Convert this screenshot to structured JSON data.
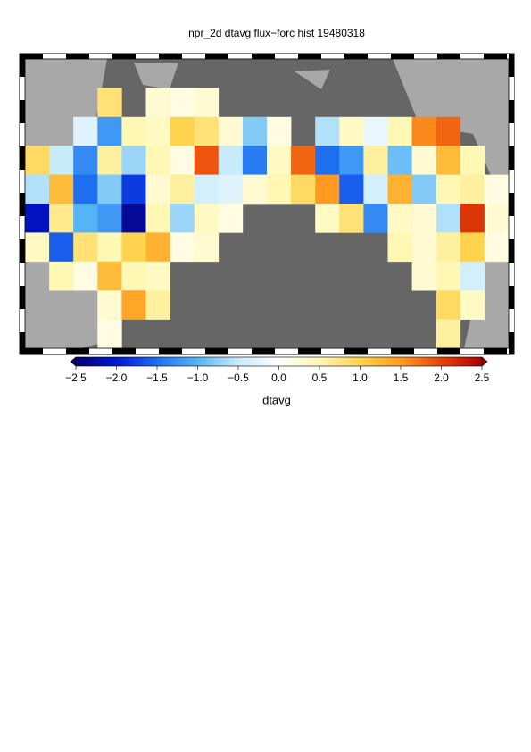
{
  "chart_data": {
    "type": "gridmap",
    "title": "npr_2d dtavg flux−forc hist 19480318",
    "colorbar_label": "dtavg",
    "clim": [
      -2.5,
      2.5
    ],
    "colormap": [
      "#08006e",
      "#0019d6",
      "#1e6ef0",
      "#55b4f5",
      "#c8ebfa",
      "#ffffff",
      "#fff7b4",
      "#ffd34d",
      "#ff9a1e",
      "#e8420a",
      "#a80000"
    ],
    "cticks": [
      {
        "value": -2.5,
        "label": "−2.5"
      },
      {
        "value": -2.0,
        "label": "−2.0"
      },
      {
        "value": -1.5,
        "label": "−1.5"
      },
      {
        "value": -1.0,
        "label": "−1.0"
      },
      {
        "value": -0.5,
        "label": "−0.5"
      },
      {
        "value": 0.0,
        "label": "0.0"
      },
      {
        "value": 0.5,
        "label": "0.5"
      },
      {
        "value": 1.0,
        "label": "1.0"
      },
      {
        "value": 1.5,
        "label": "1.5"
      },
      {
        "value": 2.0,
        "label": "2.0"
      },
      {
        "value": 2.5,
        "label": "2.5"
      }
    ],
    "values": [
      [
        null,
        null,
        null,
        null,
        null,
        null,
        null,
        null,
        null,
        null,
        null,
        null,
        null,
        null,
        null,
        null,
        null,
        null,
        null,
        null
      ],
      [
        null,
        null,
        null,
        0.8,
        null,
        0.3,
        0.2,
        0.3,
        null,
        null,
        null,
        null,
        null,
        null,
        null,
        null,
        null,
        null,
        null,
        null
      ],
      [
        null,
        null,
        -0.3,
        -1.2,
        0.5,
        0.4,
        1.0,
        0.8,
        0.3,
        -0.8,
        0.2,
        null,
        -0.6,
        0.4,
        -0.2,
        0.5,
        1.6,
        1.8,
        null,
        null
      ],
      [
        0.9,
        -0.5,
        -1.3,
        0.6,
        -0.7,
        0.5,
        0.2,
        1.9,
        -0.5,
        -1.4,
        0.4,
        1.8,
        -1.5,
        -1.2,
        0.6,
        -0.9,
        0.3,
        1.2,
        0.5,
        null
      ],
      [
        -0.6,
        1.2,
        -1.5,
        -0.8,
        -1.8,
        0.3,
        0.6,
        -0.4,
        -0.3,
        0.3,
        0.5,
        0.9,
        1.5,
        -1.6,
        -0.4,
        1.3,
        -0.8,
        0.5,
        0.6,
        0.2
      ],
      [
        -2.1,
        0.7,
        -1.0,
        -1.2,
        -2.3,
        0.5,
        -0.7,
        0.4,
        0.2,
        null,
        null,
        null,
        0.4,
        0.8,
        -1.3,
        0.4,
        0.3,
        -0.6,
        2.1,
        0.3
      ],
      [
        0.4,
        -1.6,
        0.8,
        0.5,
        1.0,
        1.3,
        0.2,
        0.3,
        null,
        null,
        null,
        null,
        null,
        null,
        null,
        0.5,
        0.3,
        0.6,
        1.0,
        0.2
      ],
      [
        null,
        0.5,
        0.2,
        1.2,
        0.5,
        0.4,
        null,
        null,
        null,
        null,
        null,
        null,
        null,
        null,
        null,
        null,
        0.3,
        0.5,
        -0.4,
        null
      ],
      [
        null,
        null,
        null,
        0.3,
        1.4,
        0.6,
        null,
        null,
        null,
        null,
        null,
        null,
        null,
        null,
        null,
        null,
        null,
        0.9,
        0.4,
        null
      ],
      [
        null,
        null,
        null,
        0.2,
        null,
        null,
        null,
        null,
        null,
        null,
        null,
        null,
        null,
        null,
        null,
        null,
        null,
        0.6,
        null,
        null
      ]
    ]
  }
}
